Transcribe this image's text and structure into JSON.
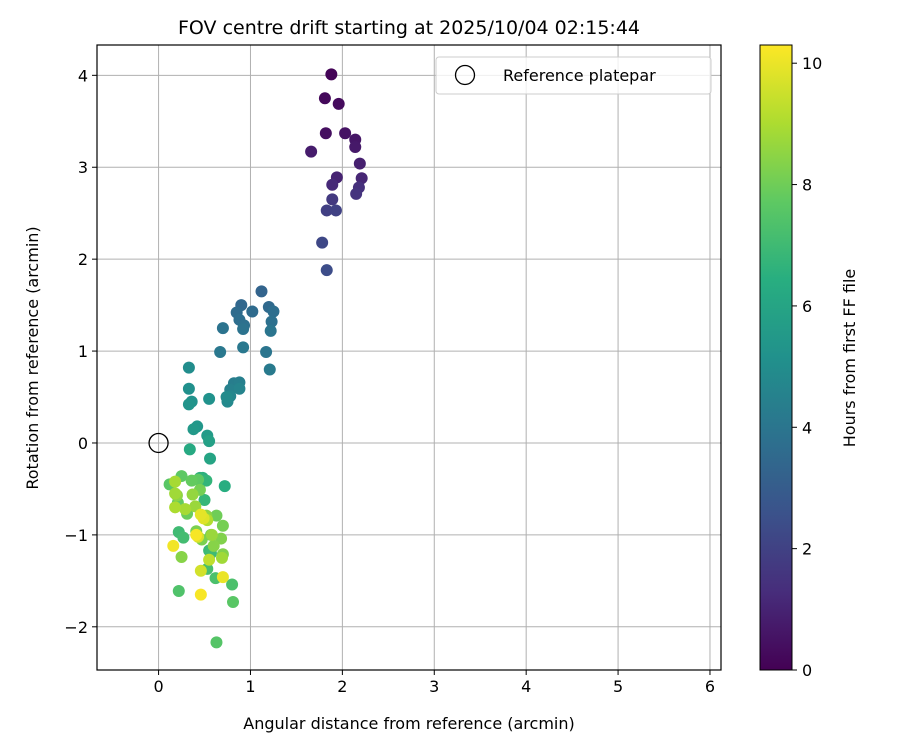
{
  "chart_data": {
    "type": "scatter",
    "title": "FOV centre drift starting at 2025/10/04 02:15:44",
    "xlabel": "Angular distance from reference (arcmin)",
    "ylabel": "Rotation from reference (arcmin)",
    "xlim": [
      -0.67,
      6.12
    ],
    "ylim": [
      -2.47,
      4.33
    ],
    "x_ticks": [
      0,
      1,
      2,
      3,
      4,
      5,
      6
    ],
    "y_ticks": [
      -2,
      -1,
      0,
      1,
      2,
      3,
      4
    ],
    "grid": true,
    "legend": {
      "placement": "top-right",
      "label": "Reference platepar"
    },
    "reference_point": {
      "x": 0,
      "y": 0
    },
    "colorbar": {
      "label": "Hours from first FF file",
      "min": 0,
      "max": 10.3,
      "ticks": [
        0,
        2,
        4,
        6,
        8,
        10
      ],
      "colormap": "viridis"
    },
    "points": [
      [
        1.88,
        4.01,
        0.1
      ],
      [
        1.81,
        3.75,
        0.2
      ],
      [
        1.96,
        3.69,
        0.3
      ],
      [
        1.82,
        3.37,
        0.4
      ],
      [
        2.03,
        3.37,
        0.5
      ],
      [
        2.14,
        3.3,
        0.6
      ],
      [
        2.14,
        3.22,
        0.7
      ],
      [
        1.66,
        3.17,
        0.8
      ],
      [
        2.19,
        3.04,
        0.9
      ],
      [
        1.94,
        2.89,
        1.0
      ],
      [
        2.21,
        2.88,
        1.1
      ],
      [
        1.89,
        2.81,
        1.2
      ],
      [
        2.18,
        2.78,
        1.4
      ],
      [
        2.15,
        2.71,
        1.5
      ],
      [
        1.89,
        2.65,
        1.7
      ],
      [
        1.83,
        2.53,
        1.9
      ],
      [
        1.93,
        2.53,
        2.0
      ],
      [
        1.78,
        2.18,
        2.2
      ],
      [
        1.83,
        1.88,
        2.4
      ],
      [
        1.12,
        1.65,
        3.3
      ],
      [
        0.9,
        1.5,
        3.4
      ],
      [
        1.2,
        1.48,
        3.5
      ],
      [
        0.85,
        1.42,
        3.6
      ],
      [
        1.02,
        1.43,
        3.6
      ],
      [
        1.25,
        1.43,
        3.7
      ],
      [
        0.88,
        1.34,
        3.7
      ],
      [
        1.23,
        1.32,
        3.8
      ],
      [
        0.93,
        1.28,
        3.8
      ],
      [
        0.7,
        1.25,
        3.9
      ],
      [
        0.92,
        1.24,
        3.9
      ],
      [
        1.22,
        1.22,
        4.0
      ],
      [
        1.17,
        0.99,
        4.0
      ],
      [
        0.67,
        0.99,
        4.1
      ],
      [
        0.92,
        1.04,
        4.1
      ],
      [
        1.21,
        0.8,
        4.2
      ],
      [
        0.82,
        0.65,
        4.3
      ],
      [
        0.88,
        0.66,
        4.4
      ],
      [
        0.78,
        0.58,
        4.5
      ],
      [
        0.88,
        0.59,
        4.6
      ],
      [
        0.78,
        0.51,
        4.7
      ],
      [
        0.75,
        0.45,
        4.8
      ],
      [
        0.74,
        0.5,
        4.9
      ],
      [
        0.33,
        0.82,
        5.0
      ],
      [
        0.33,
        0.59,
        5.1
      ],
      [
        0.55,
        0.48,
        5.2
      ],
      [
        0.36,
        0.45,
        5.2
      ],
      [
        0.33,
        0.42,
        5.3
      ],
      [
        0.42,
        0.18,
        5.4
      ],
      [
        0.38,
        0.15,
        5.5
      ],
      [
        0.53,
        0.08,
        5.6
      ],
      [
        0.55,
        0.02,
        5.8
      ],
      [
        0.56,
        -0.17,
        6.0
      ],
      [
        0.34,
        -0.07,
        6.2
      ],
      [
        0.72,
        -0.47,
        6.4
      ],
      [
        0.48,
        -0.38,
        6.5
      ],
      [
        0.45,
        -0.38,
        6.6
      ],
      [
        0.52,
        -0.41,
        6.7
      ],
      [
        0.5,
        -0.62,
        6.8
      ],
      [
        0.55,
        -1.17,
        6.9
      ],
      [
        0.57,
        -1.2,
        7.0
      ],
      [
        0.22,
        -0.97,
        7.0
      ],
      [
        0.27,
        -1.03,
        7.1
      ],
      [
        0.53,
        -1.37,
        7.2
      ],
      [
        0.62,
        -1.47,
        7.3
      ],
      [
        0.8,
        -1.54,
        7.3
      ],
      [
        0.22,
        -1.61,
        7.4
      ],
      [
        0.63,
        -2.17,
        7.5
      ],
      [
        0.81,
        -1.73,
        7.6
      ],
      [
        0.12,
        -0.45,
        7.6
      ],
      [
        0.25,
        -0.36,
        7.7
      ],
      [
        0.43,
        -0.4,
        7.7
      ],
      [
        0.36,
        -0.41,
        7.8
      ],
      [
        0.21,
        -0.65,
        7.8
      ],
      [
        0.31,
        -0.77,
        7.9
      ],
      [
        0.63,
        -0.79,
        8.0
      ],
      [
        0.57,
        -1.0,
        8.0
      ],
      [
        0.7,
        -0.9,
        8.1
      ],
      [
        0.45,
        -0.51,
        8.1
      ],
      [
        0.41,
        -0.96,
        8.2
      ],
      [
        0.47,
        -1.05,
        8.2
      ],
      [
        0.68,
        -1.04,
        8.3
      ],
      [
        0.7,
        -1.21,
        8.3
      ],
      [
        0.6,
        -1.12,
        8.4
      ],
      [
        0.25,
        -1.24,
        8.4
      ],
      [
        0.52,
        -0.79,
        8.5
      ],
      [
        0.2,
        -0.57,
        8.5
      ],
      [
        0.37,
        -0.56,
        8.6
      ],
      [
        0.4,
        -0.69,
        8.7
      ],
      [
        0.58,
        -1.0,
        8.7
      ],
      [
        0.69,
        -1.25,
        8.8
      ],
      [
        0.18,
        -0.55,
        8.8
      ],
      [
        0.29,
        -0.72,
        8.9
      ],
      [
        0.18,
        -0.42,
        8.9
      ],
      [
        0.18,
        -0.7,
        9.0
      ],
      [
        0.53,
        -0.84,
        9.1
      ],
      [
        0.55,
        -1.27,
        9.3
      ],
      [
        0.46,
        -1.39,
        9.6
      ],
      [
        0.43,
        -1.02,
        9.7
      ],
      [
        0.49,
        -0.82,
        9.8
      ],
      [
        0.46,
        -0.78,
        9.9
      ],
      [
        0.7,
        -1.46,
        10.0
      ],
      [
        0.16,
        -1.12,
        10.1
      ],
      [
        0.46,
        -1.65,
        10.2
      ],
      [
        0.41,
        -1.0,
        10.2
      ]
    ]
  }
}
